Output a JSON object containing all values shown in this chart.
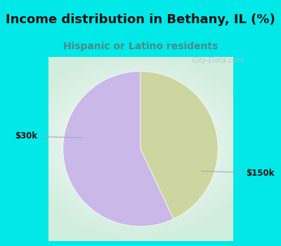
{
  "title": "Income distribution in Bethany, IL (%)",
  "subtitle": "Hispanic or Latino residents",
  "slices": [
    0.57,
    0.43
  ],
  "labels": [
    "$150k",
    "$30k"
  ],
  "colors": [
    "#c9b8e8",
    "#cdd5a0"
  ],
  "start_angle": 90,
  "bg_color": "#00e8e8",
  "title_fontsize": 13,
  "subtitle_fontsize": 10,
  "title_color": "#111111",
  "subtitle_color": "#4a8a8a",
  "watermark_text": "City-Data.com",
  "watermark_color": "#b0bec0",
  "label_color": "#111111",
  "line_color": "#a0a8c8"
}
